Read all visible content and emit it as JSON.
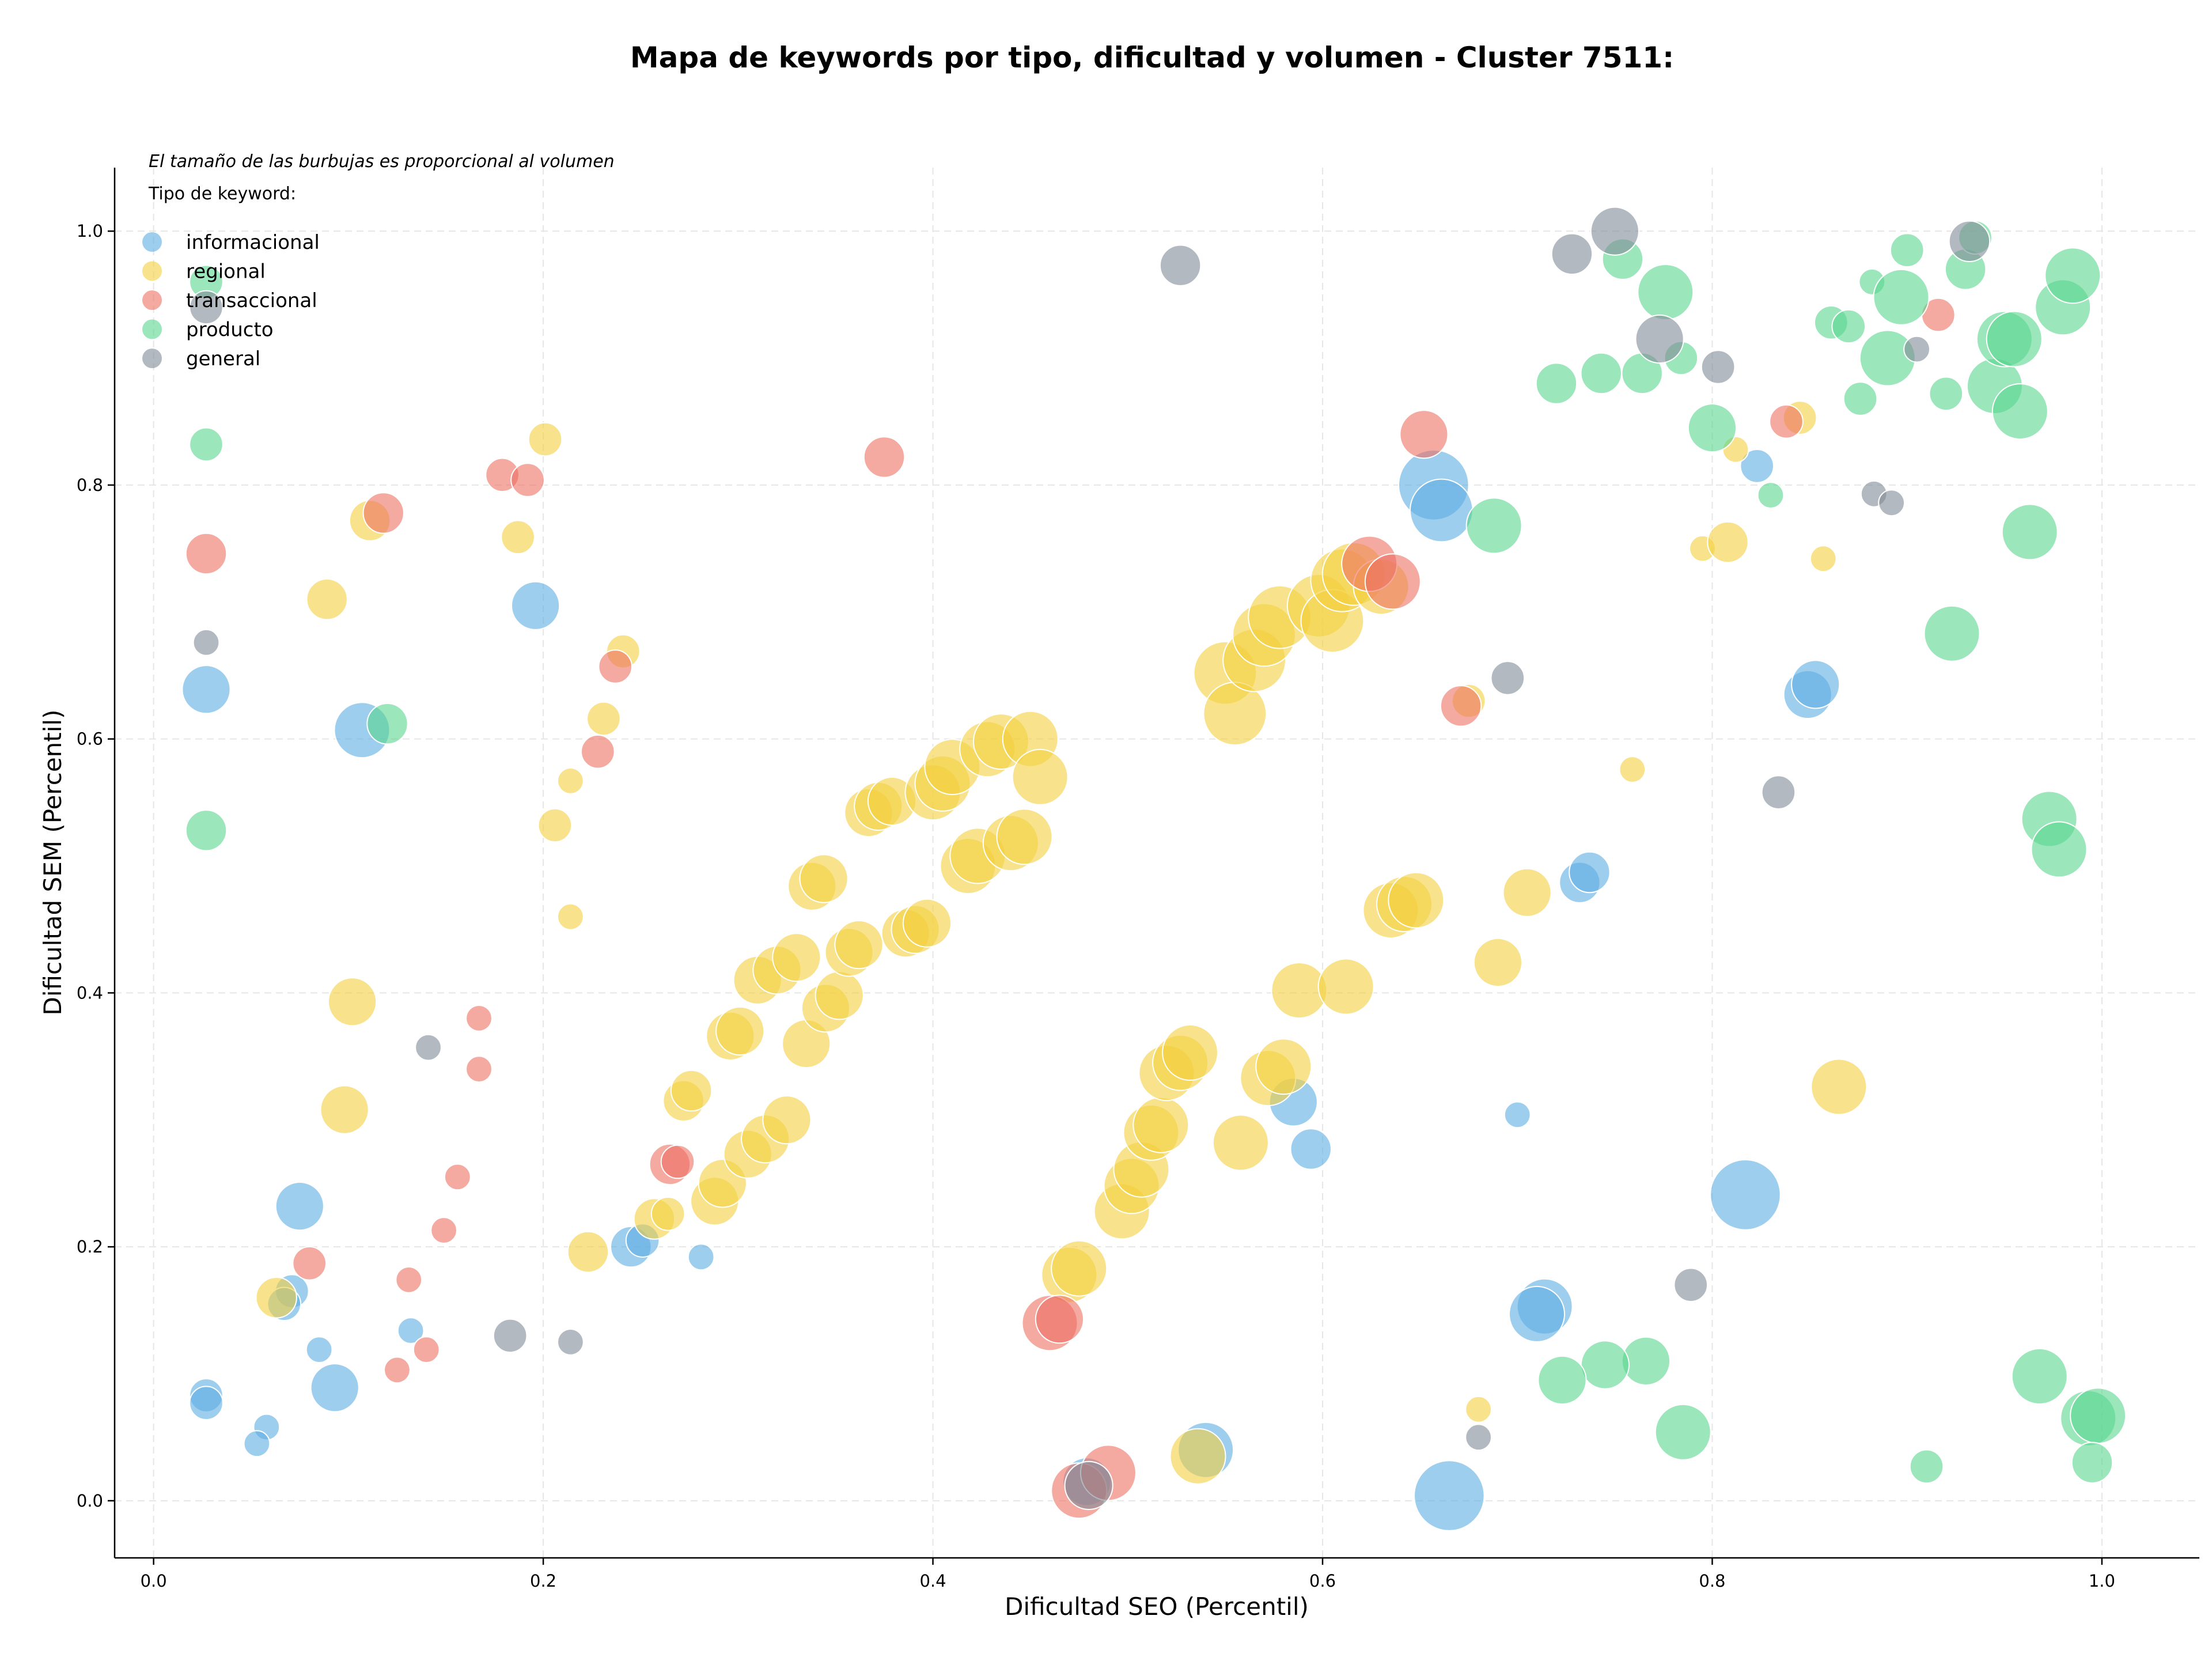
{
  "chart_data": {
    "type": "scatter",
    "title": "Mapa de keywords por tipo, dificultad y volumen - Cluster 7511:",
    "xlabel": "Dificultad SEO (Percentil)",
    "ylabel": "Dificultad SEM (Percentil)",
    "xlim": [
      -0.02,
      1.05
    ],
    "ylim": [
      -0.045,
      1.05
    ],
    "xticks": [
      "0.0",
      "0.2",
      "0.4",
      "0.6",
      "0.8",
      "1.0"
    ],
    "yticks": [
      "0.0",
      "0.2",
      "0.4",
      "0.6",
      "0.8",
      "1.0"
    ],
    "grid": true,
    "annotation": "El tamaño de las burbujas es proporcional al volumen",
    "legend_title": "Tipo de keyword:",
    "legend_position": "top-left",
    "size_encoding": "relative volume 1-10",
    "series": [
      {
        "name": "informacional",
        "color": "#5dade2",
        "points": [
          [
            0.027,
            0.639,
            4
          ],
          [
            0.107,
            0.607,
            5
          ],
          [
            0.196,
            0.705,
            4
          ],
          [
            0.075,
            0.232,
            4
          ],
          [
            0.093,
            0.089,
            4
          ],
          [
            0.027,
            0.083,
            2
          ],
          [
            0.027,
            0.077,
            2
          ],
          [
            0.058,
            0.058,
            1
          ],
          [
            0.053,
            0.045,
            1
          ],
          [
            0.085,
            0.119,
            1
          ],
          [
            0.071,
            0.165,
            2
          ],
          [
            0.067,
            0.155,
            2
          ],
          [
            0.132,
            0.134,
            1
          ],
          [
            0.245,
            0.2,
            3
          ],
          [
            0.251,
            0.205,
            2
          ],
          [
            0.281,
            0.192,
            1
          ],
          [
            0.657,
            0.8,
            7
          ],
          [
            0.661,
            0.78,
            6
          ],
          [
            0.585,
            0.314,
            4
          ],
          [
            0.594,
            0.277,
            3
          ],
          [
            0.7,
            0.304,
            1
          ],
          [
            0.732,
            0.487,
            3
          ],
          [
            0.737,
            0.495,
            3
          ],
          [
            0.817,
            0.241,
            7
          ],
          [
            0.714,
            0.153,
            5
          ],
          [
            0.71,
            0.147,
            5
          ],
          [
            0.665,
            0.004,
            7
          ],
          [
            0.54,
            0.04,
            5
          ],
          [
            0.479,
            0.015,
            4
          ],
          [
            0.823,
            0.815,
            2
          ],
          [
            0.849,
            0.635,
            4
          ],
          [
            0.853,
            0.643,
            4
          ]
        ]
      },
      {
        "name": "regional",
        "color": "#f4d03f",
        "points": [
          [
            0.111,
            0.772,
            3
          ],
          [
            0.089,
            0.71,
            3
          ],
          [
            0.201,
            0.836,
            2
          ],
          [
            0.187,
            0.759,
            2
          ],
          [
            0.241,
            0.669,
            2
          ],
          [
            0.231,
            0.616,
            2
          ],
          [
            0.214,
            0.567,
            1
          ],
          [
            0.206,
            0.532,
            2
          ],
          [
            0.214,
            0.46,
            1
          ],
          [
            0.102,
            0.393,
            4
          ],
          [
            0.098,
            0.308,
            4
          ],
          [
            0.063,
            0.16,
            3
          ],
          [
            0.223,
            0.196,
            3
          ],
          [
            0.257,
            0.222,
            3
          ],
          [
            0.264,
            0.226,
            2
          ],
          [
            0.288,
            0.236,
            4
          ],
          [
            0.292,
            0.25,
            4
          ],
          [
            0.272,
            0.315,
            3
          ],
          [
            0.276,
            0.323,
            3
          ],
          [
            0.296,
            0.366,
            4
          ],
          [
            0.301,
            0.37,
            4
          ],
          [
            0.305,
            0.273,
            4
          ],
          [
            0.314,
            0.285,
            4
          ],
          [
            0.325,
            0.3,
            4
          ],
          [
            0.31,
            0.41,
            4
          ],
          [
            0.32,
            0.418,
            4
          ],
          [
            0.33,
            0.428,
            4
          ],
          [
            0.335,
            0.36,
            4
          ],
          [
            0.345,
            0.388,
            4
          ],
          [
            0.352,
            0.398,
            4
          ],
          [
            0.357,
            0.432,
            4
          ],
          [
            0.362,
            0.438,
            4
          ],
          [
            0.338,
            0.484,
            4
          ],
          [
            0.344,
            0.49,
            4
          ],
          [
            0.367,
            0.542,
            4
          ],
          [
            0.372,
            0.547,
            4
          ],
          [
            0.379,
            0.551,
            4
          ],
          [
            0.386,
            0.447,
            4
          ],
          [
            0.391,
            0.45,
            4
          ],
          [
            0.397,
            0.455,
            4
          ],
          [
            0.4,
            0.558,
            5
          ],
          [
            0.405,
            0.565,
            5
          ],
          [
            0.41,
            0.578,
            5
          ],
          [
            0.418,
            0.5,
            5
          ],
          [
            0.423,
            0.508,
            5
          ],
          [
            0.428,
            0.592,
            5
          ],
          [
            0.435,
            0.598,
            5
          ],
          [
            0.44,
            0.518,
            5
          ],
          [
            0.447,
            0.523,
            5
          ],
          [
            0.45,
            0.6,
            5
          ],
          [
            0.455,
            0.57,
            5
          ],
          [
            0.47,
            0.178,
            5
          ],
          [
            0.475,
            0.183,
            5
          ],
          [
            0.497,
            0.228,
            5
          ],
          [
            0.502,
            0.248,
            5
          ],
          [
            0.507,
            0.261,
            5
          ],
          [
            0.512,
            0.29,
            5
          ],
          [
            0.517,
            0.296,
            5
          ],
          [
            0.52,
            0.337,
            5
          ],
          [
            0.527,
            0.345,
            5
          ],
          [
            0.532,
            0.353,
            5
          ],
          [
            0.536,
            0.035,
            5
          ],
          [
            0.55,
            0.652,
            6
          ],
          [
            0.555,
            0.62,
            6
          ],
          [
            0.565,
            0.662,
            6
          ],
          [
            0.57,
            0.682,
            6
          ],
          [
            0.578,
            0.696,
            6
          ],
          [
            0.558,
            0.282,
            5
          ],
          [
            0.572,
            0.333,
            5
          ],
          [
            0.58,
            0.342,
            5
          ],
          [
            0.588,
            0.402,
            5
          ],
          [
            0.598,
            0.705,
            6
          ],
          [
            0.605,
            0.693,
            6
          ],
          [
            0.61,
            0.725,
            6
          ],
          [
            0.616,
            0.73,
            6
          ],
          [
            0.612,
            0.405,
            5
          ],
          [
            0.635,
            0.465,
            5
          ],
          [
            0.642,
            0.47,
            5
          ],
          [
            0.648,
            0.473,
            5
          ],
          [
            0.63,
            0.72,
            5
          ],
          [
            0.675,
            0.63,
            2
          ],
          [
            0.68,
            0.072,
            1
          ],
          [
            0.69,
            0.424,
            4
          ],
          [
            0.705,
            0.479,
            4
          ],
          [
            0.759,
            0.576,
            1
          ],
          [
            0.795,
            0.75,
            1
          ],
          [
            0.808,
            0.755,
            3
          ],
          [
            0.812,
            0.828,
            1
          ],
          [
            0.845,
            0.853,
            2
          ],
          [
            0.857,
            0.742,
            1
          ],
          [
            0.865,
            0.326,
            5
          ]
        ]
      },
      {
        "name": "transaccional",
        "color": "#ec7063",
        "points": [
          [
            0.027,
            0.746,
            3
          ],
          [
            0.118,
            0.778,
            3
          ],
          [
            0.179,
            0.808,
            2
          ],
          [
            0.192,
            0.804,
            2
          ],
          [
            0.237,
            0.657,
            2
          ],
          [
            0.228,
            0.59,
            2
          ],
          [
            0.167,
            0.38,
            1
          ],
          [
            0.167,
            0.34,
            1
          ],
          [
            0.156,
            0.255,
            1
          ],
          [
            0.149,
            0.213,
            1
          ],
          [
            0.08,
            0.187,
            2
          ],
          [
            0.131,
            0.174,
            1
          ],
          [
            0.125,
            0.103,
            1
          ],
          [
            0.14,
            0.119,
            1
          ],
          [
            0.265,
            0.265,
            3
          ],
          [
            0.269,
            0.267,
            2
          ],
          [
            0.375,
            0.822,
            3
          ],
          [
            0.46,
            0.14,
            5
          ],
          [
            0.465,
            0.143,
            4
          ],
          [
            0.475,
            0.008,
            5
          ],
          [
            0.49,
            0.022,
            5
          ],
          [
            0.624,
            0.738,
            5
          ],
          [
            0.636,
            0.724,
            5
          ],
          [
            0.652,
            0.84,
            4
          ],
          [
            0.671,
            0.626,
            3
          ],
          [
            0.838,
            0.85,
            2
          ],
          [
            0.916,
            0.934,
            2
          ]
        ]
      },
      {
        "name": "producto",
        "color": "#58d68d",
        "points": [
          [
            0.027,
            0.96,
            2
          ],
          [
            0.027,
            0.832,
            2
          ],
          [
            0.027,
            0.528,
            3
          ],
          [
            0.12,
            0.612,
            3
          ],
          [
            0.688,
            0.768,
            5
          ],
          [
            0.72,
            0.88,
            3
          ],
          [
            0.743,
            0.888,
            3
          ],
          [
            0.754,
            0.978,
            3
          ],
          [
            0.764,
            0.888,
            3
          ],
          [
            0.776,
            0.952,
            5
          ],
          [
            0.784,
            0.9,
            2
          ],
          [
            0.8,
            0.845,
            4
          ],
          [
            0.83,
            0.792,
            1
          ],
          [
            0.861,
            0.928,
            2
          ],
          [
            0.87,
            0.925,
            2
          ],
          [
            0.876,
            0.868,
            2
          ],
          [
            0.882,
            0.96,
            1
          ],
          [
            0.9,
            0.985,
            2
          ],
          [
            0.89,
            0.9,
            5
          ],
          [
            0.897,
            0.948,
            5
          ],
          [
            0.92,
            0.872,
            2
          ],
          [
            0.93,
            0.97,
            3
          ],
          [
            0.935,
            0.995,
            2
          ],
          [
            0.945,
            0.878,
            5
          ],
          [
            0.95,
            0.915,
            5
          ],
          [
            0.955,
            0.915,
            5
          ],
          [
            0.958,
            0.858,
            5
          ],
          [
            0.963,
            0.763,
            5
          ],
          [
            0.98,
            0.94,
            5
          ],
          [
            0.985,
            0.965,
            5
          ],
          [
            0.923,
            0.683,
            5
          ],
          [
            0.973,
            0.537,
            5
          ],
          [
            0.978,
            0.513,
            5
          ],
          [
            0.968,
            0.098,
            5
          ],
          [
            0.993,
            0.065,
            5
          ],
          [
            0.998,
            0.067,
            5
          ],
          [
            0.995,
            0.03,
            3
          ],
          [
            0.91,
            0.027,
            2
          ],
          [
            0.785,
            0.054,
            5
          ],
          [
            0.766,
            0.11,
            4
          ],
          [
            0.745,
            0.107,
            4
          ],
          [
            0.723,
            0.095,
            4
          ]
        ]
      },
      {
        "name": "general",
        "color": "#808b96",
        "points": [
          [
            0.027,
            0.94,
            2
          ],
          [
            0.027,
            0.676,
            1
          ],
          [
            0.141,
            0.357,
            1
          ],
          [
            0.183,
            0.13,
            2
          ],
          [
            0.214,
            0.125,
            1
          ],
          [
            0.527,
            0.973,
            3
          ],
          [
            0.695,
            0.648,
            2
          ],
          [
            0.728,
            0.982,
            3
          ],
          [
            0.75,
            1.0,
            4
          ],
          [
            0.773,
            0.915,
            4
          ],
          [
            0.803,
            0.893,
            2
          ],
          [
            0.834,
            0.558,
            2
          ],
          [
            0.789,
            0.17,
            2
          ],
          [
            0.68,
            0.05,
            1
          ],
          [
            0.883,
            0.793,
            1
          ],
          [
            0.892,
            0.786,
            1
          ],
          [
            0.905,
            0.907,
            1
          ],
          [
            0.932,
            0.992,
            3
          ],
          [
            0.48,
            0.012,
            4
          ]
        ]
      }
    ]
  }
}
